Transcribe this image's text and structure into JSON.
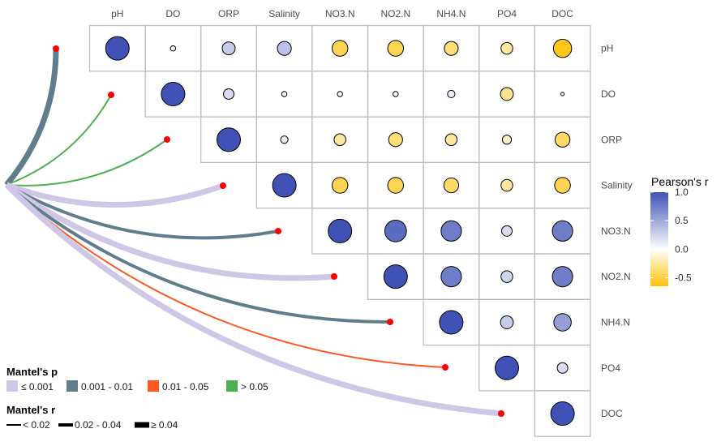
{
  "chart_data": {
    "type": "heatmap",
    "subtype": "correlation-circles-with-mantel-links",
    "variables": [
      "pH",
      "DO",
      "ORP",
      "Salinity",
      "NO3.N",
      "NO2.N",
      "NH4.N",
      "PO4",
      "DOC"
    ],
    "column_labels": [
      "pH",
      "DO",
      "ORP",
      "Salinity",
      "NO3.N",
      "NO2.N",
      "NH4.N",
      "PO4",
      "DOC"
    ],
    "row_labels": [
      "pH",
      "DO",
      "ORP",
      "Salinity",
      "NO3.N",
      "NO2.N",
      "NH4.N",
      "PO4",
      "DOC"
    ],
    "pearson_r_upper": [
      [
        1.0,
        0.05,
        0.3,
        0.35,
        -0.45,
        -0.45,
        -0.35,
        -0.25,
        -0.6
      ],
      [
        null,
        1.0,
        0.2,
        -0.05,
        -0.05,
        -0.05,
        0.1,
        -0.3,
        -0.02
      ],
      [
        null,
        null,
        1.0,
        0.1,
        -0.25,
        -0.35,
        -0.25,
        -0.15,
        -0.4
      ],
      [
        null,
        null,
        null,
        1.0,
        -0.45,
        -0.45,
        -0.4,
        -0.25,
        -0.45
      ],
      [
        null,
        null,
        null,
        null,
        1.0,
        0.85,
        0.75,
        0.2,
        0.75
      ],
      [
        null,
        null,
        null,
        null,
        null,
        1.0,
        0.75,
        0.25,
        0.75
      ],
      [
        null,
        null,
        null,
        null,
        null,
        null,
        1.0,
        0.3,
        0.55
      ],
      [
        null,
        null,
        null,
        null,
        null,
        null,
        null,
        1.0,
        0.2
      ],
      [
        null,
        null,
        null,
        null,
        null,
        null,
        null,
        null,
        1.0
      ]
    ],
    "mantel_links": [
      {
        "to": "pH",
        "p_class": "0.001 - 0.01",
        "r_class": ">= 0.04"
      },
      {
        "to": "DO",
        "p_class": "> 0.05",
        "r_class": "< 0.02"
      },
      {
        "to": "ORP",
        "p_class": "> 0.05",
        "r_class": "< 0.02"
      },
      {
        "to": "Salinity",
        "p_class": "<= 0.001",
        "r_class": ">= 0.04"
      },
      {
        "to": "NO3.N",
        "p_class": "0.001 - 0.01",
        "r_class": "0.02 - 0.04"
      },
      {
        "to": "NO2.N",
        "p_class": "<= 0.001",
        "r_class": ">= 0.04"
      },
      {
        "to": "NH4.N",
        "p_class": "0.001 - 0.01",
        "r_class": "0.02 - 0.04"
      },
      {
        "to": "PO4",
        "p_class": "0.01 - 0.05",
        "r_class": "< 0.02"
      },
      {
        "to": "DOC",
        "p_class": "<= 0.001",
        "r_class": ">= 0.04"
      }
    ],
    "colorbar": {
      "title": "Pearson's r",
      "ticks": [
        "1.0",
        "0.5",
        "0.0",
        "-0.5"
      ],
      "range": [
        -0.65,
        1.0
      ],
      "high_color": "#3F51B5",
      "mid_color": "#FFFFFF",
      "low_color": "#FFC107"
    },
    "title": "",
    "xlabel": "",
    "ylabel": "",
    "grid": true
  },
  "legend": {
    "mantel_p": {
      "title": "Mantel's p",
      "items": [
        {
          "label": "≤ 0.001",
          "color": "#D0C6E6"
        },
        {
          "label": "0.001 - 0.01",
          "color": "#607D8B"
        },
        {
          "label": "0.01 - 0.05",
          "color": "#FF5722"
        },
        {
          "label": "> 0.05",
          "color": "#4CAF50"
        }
      ]
    },
    "mantel_r": {
      "title": "Mantel's r",
      "items": [
        {
          "label": "< 0.02",
          "width": 2
        },
        {
          "label": "0.02 - 0.04",
          "width": 4
        },
        {
          "label": "≥ 0.04",
          "width": 7
        }
      ]
    }
  }
}
